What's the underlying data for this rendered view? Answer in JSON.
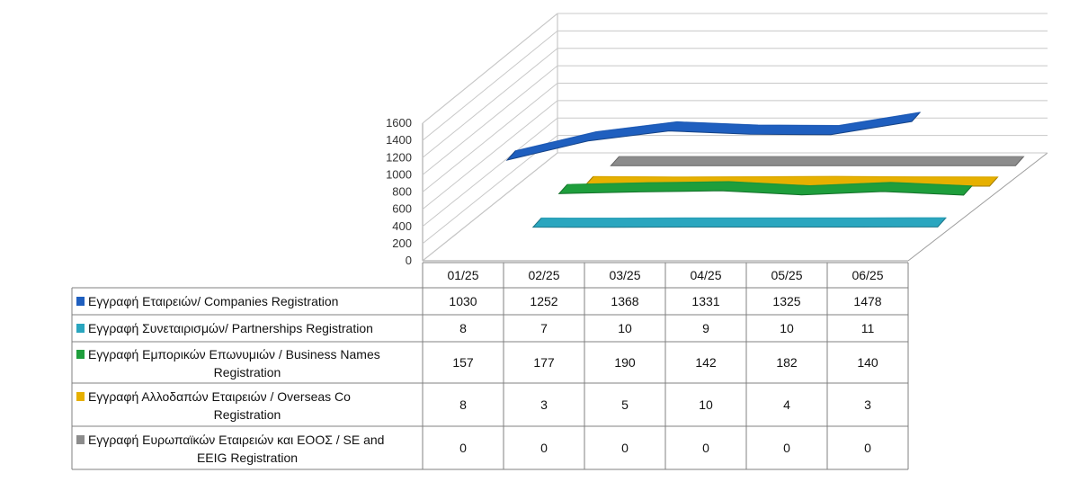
{
  "chart_data": {
    "type": "line",
    "categories": [
      "01/25",
      "02/25",
      "03/25",
      "04/25",
      "05/25",
      "06/25"
    ],
    "yticks": [
      "0",
      "200",
      "400",
      "600",
      "800",
      "1000",
      "1200",
      "1400",
      "1600"
    ],
    "ylim": [
      0,
      1600
    ],
    "grid": true,
    "series": [
      {
        "name": "Εγγραφή Εταιρειών/ Companies Registration",
        "name_lines": [
          "Εγγραφή Εταιρειών/ Companies Registration"
        ],
        "color": "#1f5fbf",
        "depth": 0,
        "values": [
          1030,
          1252,
          1368,
          1331,
          1325,
          1478
        ],
        "labels": [
          "1030",
          "1252",
          "1368",
          "1331",
          "1325",
          "1478"
        ]
      },
      {
        "name": "Εγγραφή Συνεταιρισμών/ Partnerships Registration",
        "name_lines": [
          "Εγγραφή Συνεταιρισμών/ Partnerships Registration"
        ],
        "color": "#2aa6bf",
        "depth": 1,
        "values": [
          8,
          7,
          10,
          9,
          10,
          11
        ],
        "labels": [
          "8",
          "7",
          "10",
          "9",
          "10",
          "11"
        ]
      },
      {
        "name": "Εγγραφή Εμπορικών Επωνυμιών / Business Names Registration",
        "name_lines": [
          "Εγγραφή Εμπορικών Επωνυμιών / Business Names",
          "Registration"
        ],
        "color": "#1e9e3c",
        "depth": 2,
        "values": [
          157,
          177,
          190,
          142,
          182,
          140
        ],
        "labels": [
          "157",
          "177",
          "190",
          "142",
          "182",
          "140"
        ]
      },
      {
        "name": "Εγγραφή Αλλοδαπών Εταιρειών / Overseas Co Registration",
        "name_lines": [
          "Εγγραφή Αλλοδαπών Εταιρειών / Overseas Co",
          "Registration"
        ],
        "color": "#e6b000",
        "depth": 3,
        "values": [
          8,
          3,
          5,
          10,
          4,
          3
        ],
        "labels": [
          "8",
          "3",
          "5",
          "10",
          "4",
          "3"
        ]
      },
      {
        "name": "Εγγραφή Ευρωπαϊκών Εταιρειών και ΕΟΟΣ / SE and EEIG Registration",
        "name_lines": [
          "Εγγραφή Ευρωπαϊκών Εταιρειών και ΕΟΟΣ / SE and",
          "EEIG Registration"
        ],
        "color": "#8c8c8c",
        "depth": 4,
        "values": [
          0,
          0,
          0,
          0,
          0,
          0
        ],
        "labels": [
          "0",
          "0",
          "0",
          "0",
          "0",
          "0"
        ]
      }
    ]
  }
}
